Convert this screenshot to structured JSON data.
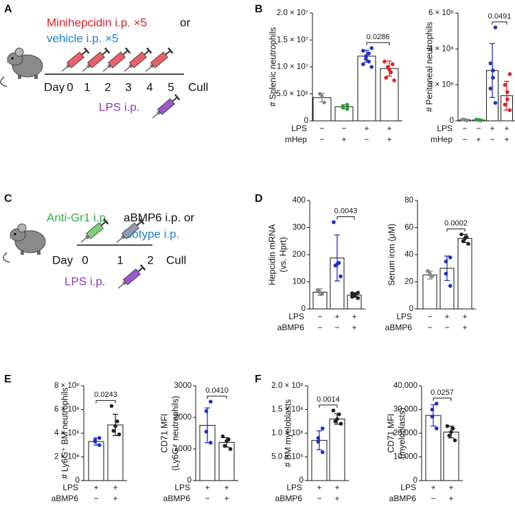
{
  "panel_labels": [
    "A",
    "B",
    "C",
    "D",
    "E",
    "F"
  ],
  "schematic_a": {
    "treatment": "Minihepcidin i.p. ×5",
    "or": "or",
    "vehicle": "vehicle i.p. ×5",
    "day_label": "Day",
    "days": [
      "0",
      "1",
      "2",
      "3",
      "4",
      "5"
    ],
    "end": "Cull",
    "lps": "LPS i.p."
  },
  "schematic_c": {
    "treatment": "Anti-Gr1 i.p.",
    "antibody": "aBMP6 i.p. or",
    "isotype": "isotype i.p.",
    "day_label": "Day",
    "days": [
      "0",
      "1",
      "2"
    ],
    "end": "Cull",
    "lps": "LPS i.p."
  },
  "chart_data": [
    {
      "type": "bar",
      "ylabel": [
        "# Splenic neutrophils"
      ],
      "ylim": [
        0,
        20000000
      ],
      "yticks": [
        0,
        {
          "value": 5000000,
          "label": "5.0 × 10⁶"
        },
        {
          "value": 10000000,
          "label": "1.0 × 10⁷"
        },
        {
          "value": 15000000,
          "label": "1.5 × 10⁷"
        },
        {
          "value": 20000000,
          "label": "2.0 × 10⁷"
        }
      ],
      "values": [
        4300000,
        2600000,
        12000000,
        9700000
      ],
      "errors": [
        800000,
        400000,
        1100000,
        1400000
      ],
      "colors": [
        "#888888",
        "#2e9e3a",
        "#1f2fc9",
        "#e0202a"
      ],
      "points": [
        [
          3400000,
          4500000,
          5000000
        ],
        [
          2200000,
          2500000,
          2700000,
          3000000
        ],
        [
          10000000,
          10500000,
          11000000,
          11500000,
          12000000,
          12500000,
          13000000,
          13500000
        ],
        [
          7500000,
          8000000,
          9000000,
          9500000,
          10000000,
          10500000,
          11000000
        ]
      ],
      "conditions": [
        {
          "name": "LPS",
          "values": [
            "−",
            "−",
            "+",
            "+"
          ]
        },
        {
          "name": "mHep",
          "values": [
            "−",
            "+",
            "−",
            "+"
          ]
        }
      ],
      "p_value": "0.0286"
    },
    {
      "type": "bar",
      "ylabel": [
        "# Peritoneal neutrophils"
      ],
      "ylim": [
        0,
        6000000
      ],
      "yticks": [
        0,
        {
          "value": 2000000,
          "label": "2 × 10⁶"
        },
        {
          "value": 4000000,
          "label": "4 × 10⁶"
        },
        {
          "value": 6000000,
          "label": "6 × 10⁶"
        }
      ],
      "values": [
        50000,
        50000,
        2800000,
        1400000
      ],
      "errors": [
        20000,
        20000,
        1500000,
        800000
      ],
      "colors": [
        "#888888",
        "#2e9e3a",
        "#1f2fc9",
        "#e0202a"
      ],
      "points": [
        [
          30000,
          50000,
          80000
        ],
        [
          30000,
          50000,
          70000
        ],
        [
          1000000,
          1800000,
          2400000,
          2800000,
          3200000,
          5200000
        ],
        [
          600000,
          900000,
          1200000,
          1600000,
          2000000,
          2600000
        ]
      ],
      "conditions": [
        {
          "name": "LPS",
          "values": [
            "−",
            "−",
            "+",
            "+"
          ]
        },
        {
          "name": "mHep",
          "values": [
            "−",
            "+",
            "−",
            "+"
          ]
        }
      ],
      "p_value": "0.0491"
    },
    {
      "type": "bar",
      "ylabel": [
        "Hepcidin mRNA",
        "(vs. Hprt)"
      ],
      "ylim": [
        0,
        400
      ],
      "yticks": [
        0,
        100,
        200,
        300,
        400
      ],
      "values": [
        62,
        188,
        51
      ],
      "errors": [
        12,
        85,
        8
      ],
      "colors": [
        "#888888",
        "#1f2fc9",
        "#222222"
      ],
      "points": [
        [
          55,
          60,
          70
        ],
        [
          120,
          160,
          165,
          170,
          320
        ],
        [
          40,
          45,
          50,
          55,
          58,
          60
        ]
      ],
      "conditions": [
        {
          "name": "LPS",
          "values": [
            "−",
            "+",
            "+"
          ]
        },
        {
          "name": "aBMP6",
          "values": [
            "−",
            "−",
            "+"
          ]
        }
      ],
      "p_value": "0.0043"
    },
    {
      "type": "bar",
      "ylabel": [
        "Serum iron (μM)"
      ],
      "ylim": [
        0,
        80
      ],
      "yticks": [
        0,
        20,
        40,
        60,
        80
      ],
      "values": [
        25,
        30,
        52
      ],
      "errors": [
        3,
        9,
        3
      ],
      "colors": [
        "#888888",
        "#1f2fc9",
        "#222222"
      ],
      "points": [
        [
          24,
          26,
          28
        ],
        [
          17,
          26,
          35,
          38
        ],
        [
          48,
          50,
          52,
          53,
          55
        ]
      ],
      "conditions": [
        {
          "name": "LPS",
          "values": [
            "−",
            "+",
            "+"
          ]
        },
        {
          "name": "aBMP6",
          "values": [
            "−",
            "−",
            "+"
          ]
        }
      ],
      "p_value": "0.0002"
    },
    {
      "type": "bar",
      "ylabel": [
        "# Ly6G⁺ BM neutrophils"
      ],
      "ylim": [
        0,
        8000000
      ],
      "yticks": [
        0,
        {
          "value": 2000000,
          "label": "2 × 10⁶"
        },
        {
          "value": 4000000,
          "label": "4 × 10⁶"
        },
        {
          "value": 6000000,
          "label": "6 × 10⁶"
        },
        {
          "value": 8000000,
          "label": "8 × 10⁶"
        }
      ],
      "values": [
        3300000,
        4700000
      ],
      "errors": [
        300000,
        900000
      ],
      "colors": [
        "#1f2fc9",
        "#222222"
      ],
      "points": [
        [
          3000000,
          3300000,
          3400000,
          3600000
        ],
        [
          3900000,
          4200000,
          4600000,
          5000000,
          6300000
        ]
      ],
      "conditions": [
        {
          "name": "LPS",
          "values": [
            "+",
            "+"
          ]
        },
        {
          "name": "aBMP6",
          "values": [
            "−",
            "+"
          ]
        }
      ],
      "p_value": "0.0243"
    },
    {
      "type": "bar",
      "ylabel": [
        "CD71 MFI",
        "(Ly6G⁺ neutrophils)"
      ],
      "ylim": [
        0,
        3000
      ],
      "yticks": [
        0,
        1000,
        2000,
        3000
      ],
      "values": [
        1750,
        1210
      ],
      "errors": [
        550,
        150
      ],
      "colors": [
        "#1f2fc9",
        "#222222"
      ],
      "points": [
        [
          1200,
          1550,
          2200,
          2500
        ],
        [
          1000,
          1100,
          1250,
          1300,
          1400
        ]
      ],
      "conditions": [
        {
          "name": "LPS",
          "values": [
            "+",
            "+"
          ]
        },
        {
          "name": "aBMP6",
          "values": [
            "−",
            "+"
          ]
        }
      ],
      "p_value": "0.0410"
    },
    {
      "type": "bar",
      "ylabel": [
        "# BM myeloblasts"
      ],
      "ylim": [
        0,
        2000000
      ],
      "yticks": [
        0,
        {
          "value": 500000,
          "label": "5.0 × 10⁵"
        },
        {
          "value": 1000000,
          "label": "1.0 × 10⁶"
        },
        {
          "value": 1500000,
          "label": "1.5 × 10⁶"
        },
        {
          "value": 2000000,
          "label": "2.0 × 10⁶"
        }
      ],
      "values": [
        850000,
        1300000
      ],
      "errors": [
        200000,
        110000
      ],
      "colors": [
        "#1f2fc9",
        "#222222"
      ],
      "points": [
        [
          600000,
          820000,
          900000,
          1100000
        ],
        [
          1200000,
          1250000,
          1300000,
          1400000,
          1480000
        ]
      ],
      "conditions": [
        {
          "name": "LPS",
          "values": [
            "+",
            "+"
          ]
        },
        {
          "name": "aBMP6",
          "values": [
            "−",
            "+"
          ]
        }
      ],
      "p_value": "0.0014"
    },
    {
      "type": "bar",
      "ylabel": [
        "CD71 MFI",
        "(myeloblasts)"
      ],
      "ylim": [
        0,
        40000
      ],
      "yticks": [
        0,
        {
          "value": 10000,
          "label": "10,000"
        },
        {
          "value": 20000,
          "label": "20,000"
        },
        {
          "value": 30000,
          "label": "30,000"
        },
        {
          "value": 40000,
          "label": "40,000"
        }
      ],
      "values": [
        27500,
        20500
      ],
      "errors": [
        4500,
        2500
      ],
      "colors": [
        "#1f2fc9",
        "#222222"
      ],
      "points": [
        [
          22000,
          27000,
          30000,
          32500
        ],
        [
          17000,
          19000,
          20500,
          22000,
          23000
        ]
      ],
      "conditions": [
        {
          "name": "LPS",
          "values": [
            "+",
            "+"
          ]
        },
        {
          "name": "aBMP6",
          "values": [
            "−",
            "+"
          ]
        }
      ],
      "p_value": "0.0257"
    }
  ]
}
